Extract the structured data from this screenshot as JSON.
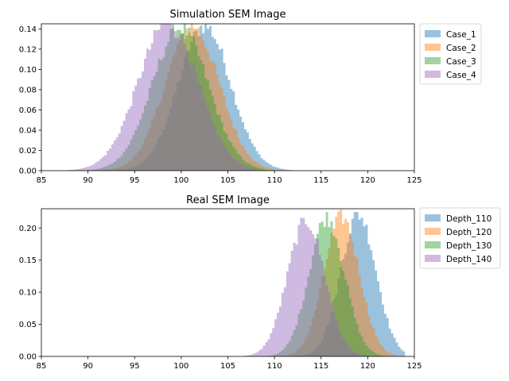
{
  "chart_data": [
    {
      "type": "histogram",
      "title": "Simulation SEM Image",
      "xlabel": "",
      "ylabel": "",
      "xlim": [
        85,
        125
      ],
      "ylim": [
        0,
        0.145
      ],
      "xticks": [
        "85",
        "90",
        "95",
        "100",
        "105",
        "110",
        "115",
        "120",
        "125"
      ],
      "yticks": [
        "0.00",
        "0.02",
        "0.04",
        "0.06",
        "0.08",
        "0.10",
        "0.12",
        "0.14"
      ],
      "grid": false,
      "legend_position": "outside-right-top",
      "bin_width": 0.25,
      "series": [
        {
          "name": "Case_1",
          "color": "#1f77b4",
          "mean": 102.5,
          "std": 2.8,
          "peak": 0.143,
          "range": [
            90,
            112
          ]
        },
        {
          "name": "Case_2",
          "color": "#ff7f0e",
          "mean": 101.2,
          "std": 2.9,
          "peak": 0.142,
          "range": [
            89,
            110
          ]
        },
        {
          "name": "Case_3",
          "color": "#2ca02c",
          "mean": 99.9,
          "std": 3.0,
          "peak": 0.141,
          "range": [
            88,
            109
          ]
        },
        {
          "name": "Case_4",
          "color": "#9467bd",
          "mean": 98.6,
          "std": 3.2,
          "peak": 0.146,
          "range": [
            86,
            108
          ]
        }
      ]
    },
    {
      "type": "histogram",
      "title": "Real SEM Image",
      "xlabel": "",
      "ylabel": "",
      "xlim": [
        85,
        125
      ],
      "ylim": [
        0,
        0.23
      ],
      "xticks": [
        "85",
        "90",
        "95",
        "100",
        "105",
        "110",
        "115",
        "120",
        "125"
      ],
      "yticks": [
        "0.00",
        "0.05",
        "0.10",
        "0.15",
        "0.20"
      ],
      "grid": false,
      "legend_position": "outside-right-top",
      "bin_width": 0.25,
      "series": [
        {
          "name": "Depth_110",
          "color": "#1f77b4",
          "mean": 119.0,
          "std": 1.9,
          "peak": 0.221,
          "range": [
            109,
            124
          ]
        },
        {
          "name": "Depth_120",
          "color": "#ff7f0e",
          "mean": 117.2,
          "std": 1.9,
          "peak": 0.217,
          "range": [
            108,
            123
          ]
        },
        {
          "name": "Depth_130",
          "color": "#2ca02c",
          "mean": 115.6,
          "std": 1.9,
          "peak": 0.216,
          "range": [
            107,
            122
          ]
        },
        {
          "name": "Depth_140",
          "color": "#9467bd",
          "mean": 113.4,
          "std": 2.0,
          "peak": 0.211,
          "range": [
            105,
            120
          ]
        }
      ]
    }
  ]
}
